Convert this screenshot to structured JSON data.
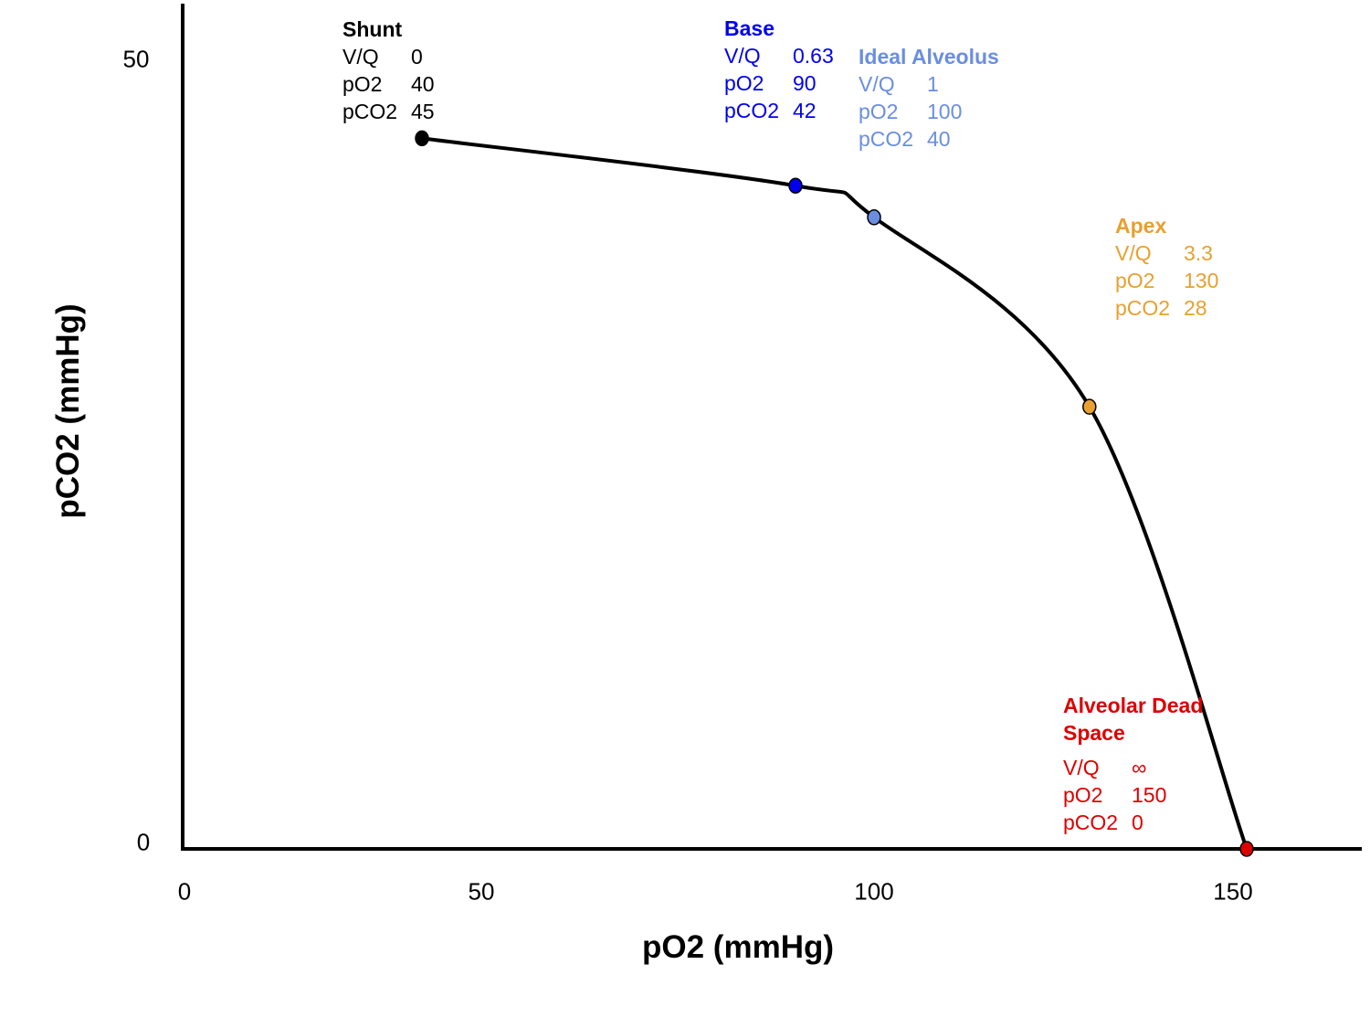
{
  "chart_data": {
    "type": "line",
    "title": "",
    "xlabel": "pO2 (mmHg)",
    "ylabel": "pCO2 (mmHg)",
    "xticks": [
      "0",
      "50",
      "100",
      "150"
    ],
    "yticks": [
      "0",
      "50"
    ],
    "grid": false,
    "legend": "none",
    "points": [
      {
        "title": [
          "Shunt"
        ],
        "vq": "0",
        "po2": 40,
        "pco2": 45,
        "color": "#000000"
      },
      {
        "title": [
          "Base"
        ],
        "vq": "0.63",
        "po2": 90,
        "pco2": 42,
        "color": "#0000ee"
      },
      {
        "title": [
          "Ideal Alveolus"
        ],
        "vq": "1",
        "po2": 100,
        "pco2": 40,
        "color": "#6a8ee0"
      },
      {
        "title": [
          "Apex"
        ],
        "vq": "3.3",
        "po2": 130,
        "pco2": 28,
        "color": "#e8a030"
      },
      {
        "title": [
          "Alveolar Dead",
          "Space"
        ],
        "vq": "∞",
        "po2": 150,
        "pco2": 0,
        "color": "#dd0000"
      }
    ],
    "row_labels": {
      "vq": "V/Q",
      "po2": "pO2",
      "pco2": "pCO2"
    }
  }
}
